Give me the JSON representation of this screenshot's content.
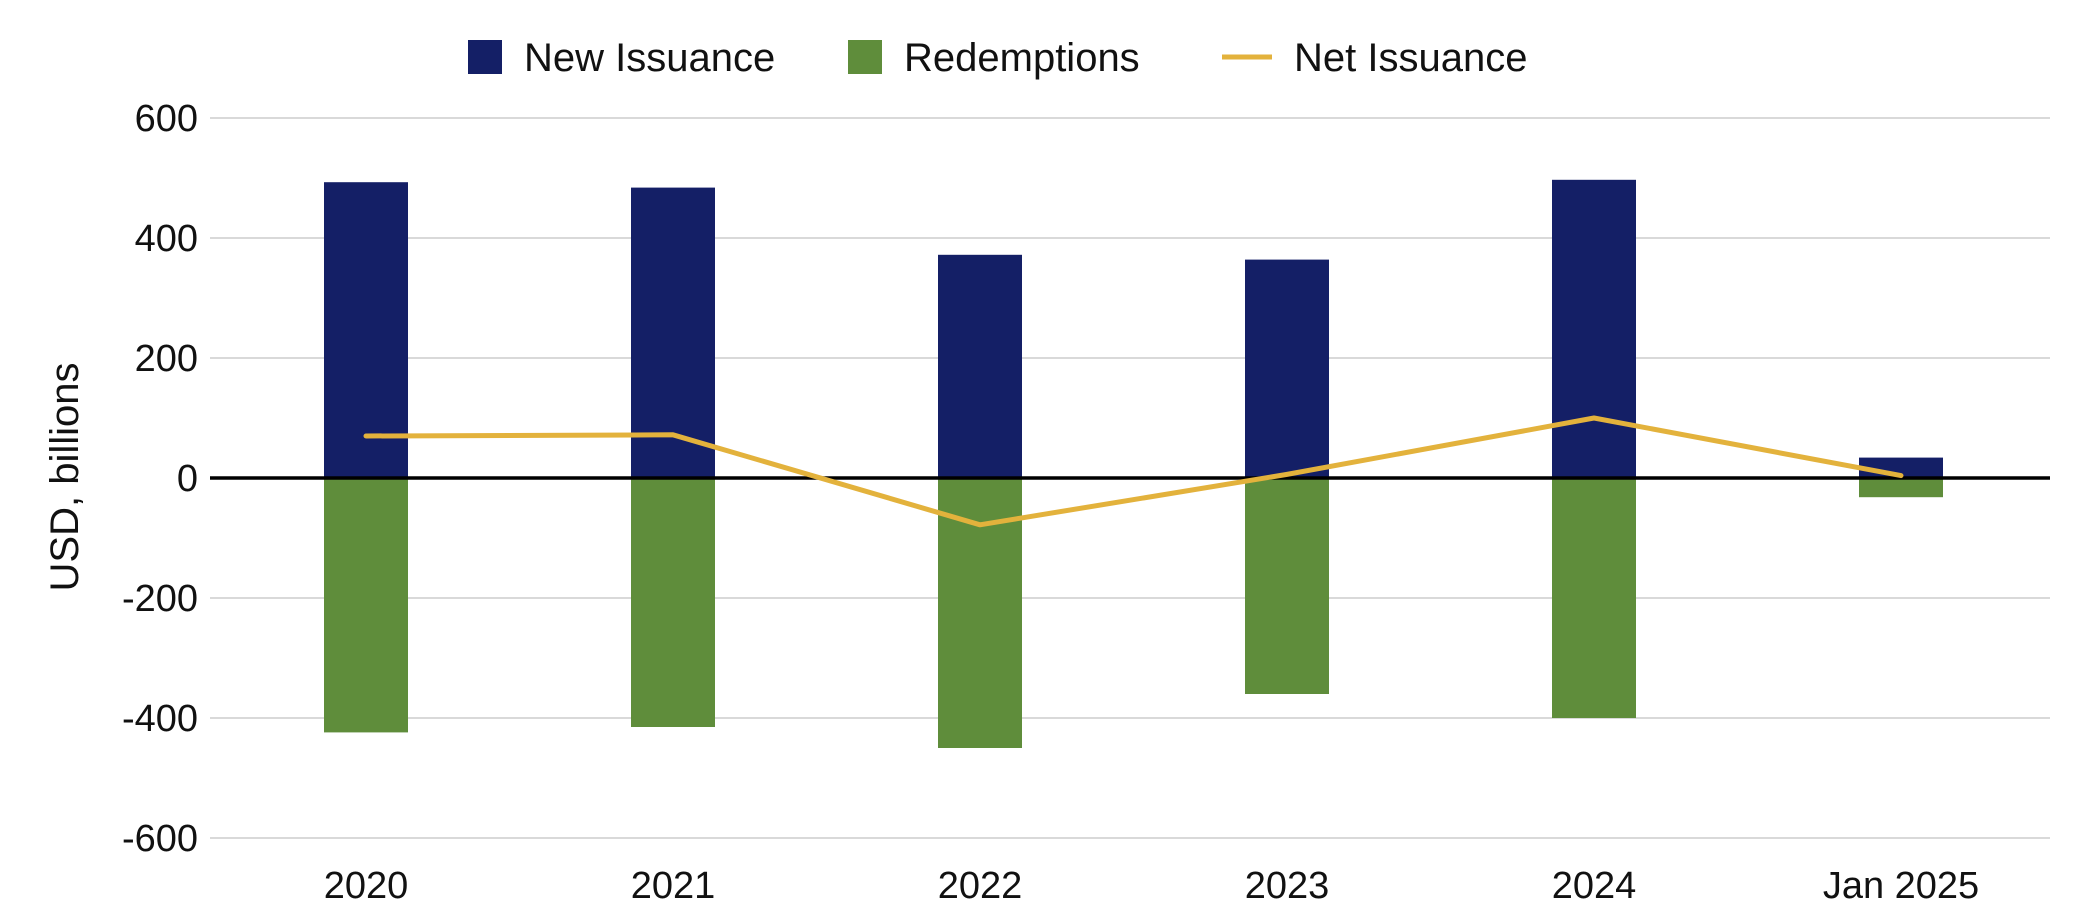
{
  "chart_data": {
    "type": "bar",
    "title": "",
    "xlabel": "",
    "ylabel": "USD, billions",
    "ylim": [
      -600,
      600
    ],
    "yticks": [
      600,
      400,
      200,
      0,
      -200,
      -400,
      -600
    ],
    "grid": true,
    "legend_position": "top",
    "categories": [
      "2020",
      "2021",
      "2022",
      "2023",
      "2024",
      "Jan 2025"
    ],
    "series": [
      {
        "name": "New Issuance",
        "kind": "bar",
        "color": "#141f66",
        "values": [
          493,
          484,
          372,
          364,
          497,
          34
        ]
      },
      {
        "name": "Redemptions",
        "kind": "bar",
        "color": "#5f8d3b",
        "values": [
          -424,
          -415,
          -450,
          -360,
          -400,
          -32
        ]
      },
      {
        "name": "Net Issuance",
        "kind": "line",
        "color": "#e3b23c",
        "values": [
          70,
          72,
          -78,
          6,
          100,
          4
        ]
      }
    ]
  },
  "colors": {
    "grid": "#d9d9d9",
    "zero_line": "#000000",
    "text": "#111111"
  }
}
